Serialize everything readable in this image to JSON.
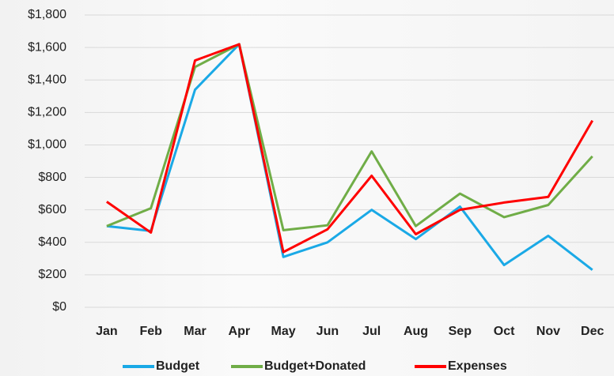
{
  "chart_data": {
    "type": "line",
    "categories": [
      "Jan",
      "Feb",
      "Mar",
      "Apr",
      "May",
      "Jun",
      "Jul",
      "Aug",
      "Sep",
      "Oct",
      "Nov",
      "Dec"
    ],
    "series": [
      {
        "name": "Budget",
        "color": "#1aa9e6",
        "values": [
          500,
          470,
          1340,
          1620,
          310,
          400,
          600,
          420,
          620,
          260,
          440,
          230
        ]
      },
      {
        "name": "Budget+Donated",
        "color": "#70ad47",
        "values": [
          500,
          610,
          1480,
          1620,
          475,
          505,
          960,
          500,
          700,
          555,
          630,
          930
        ]
      },
      {
        "name": "Expenses",
        "color": "#ff0000",
        "values": [
          650,
          460,
          1520,
          1620,
          340,
          480,
          810,
          450,
          600,
          645,
          680,
          1150
        ]
      }
    ],
    "ylim": [
      0,
      1800
    ],
    "yticks": [
      {
        "value": 0,
        "label": "$0"
      },
      {
        "value": 200,
        "label": "$200"
      },
      {
        "value": 400,
        "label": "$400"
      },
      {
        "value": 600,
        "label": "$600"
      },
      {
        "value": 800,
        "label": "$800"
      },
      {
        "value": 1000,
        "label": "$1,000"
      },
      {
        "value": 1200,
        "label": "$1,200"
      },
      {
        "value": 1400,
        "label": "$1,400"
      },
      {
        "value": 1600,
        "label": "$1,600"
      },
      {
        "value": 1800,
        "label": "$1,800"
      }
    ],
    "grid": true,
    "legend": "bottom"
  }
}
